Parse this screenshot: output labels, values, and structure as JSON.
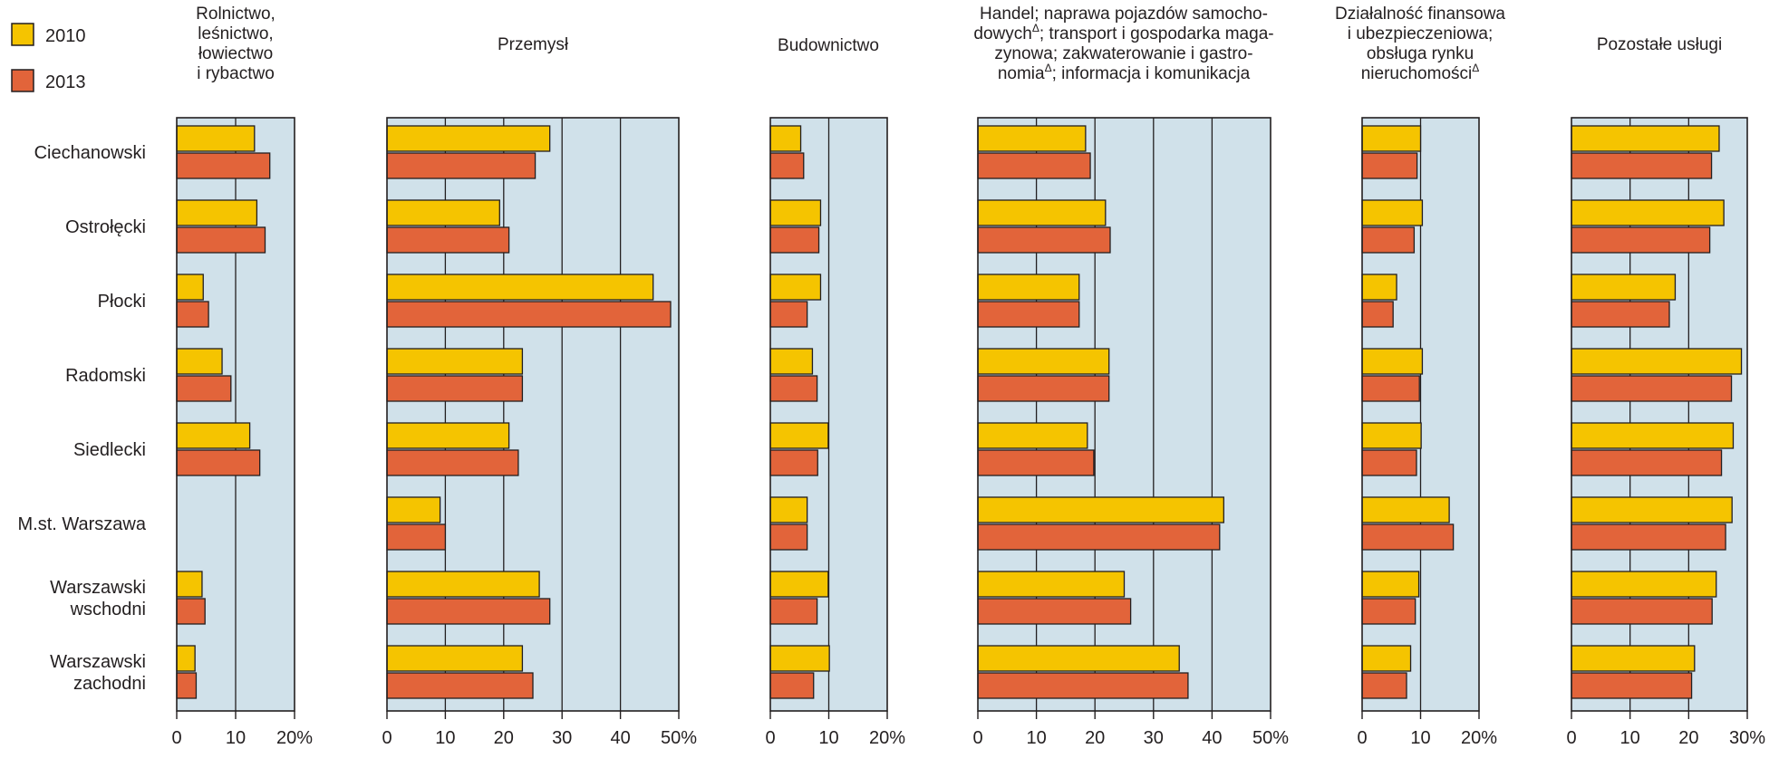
{
  "chart_data": {
    "type": "bar",
    "orientation": "horizontal",
    "layout": "small-multiples",
    "categories": [
      "Ciechanowski",
      "Ostrołęcki",
      "Płocki",
      "Radomski",
      "Siedlecki",
      "M.st. Warszawa",
      "Warszawski wschodni",
      "Warszawski zachodni"
    ],
    "category_label_lines": [
      [
        "Ciechanowski"
      ],
      [
        "Ostrołęcki"
      ],
      [
        "Płocki"
      ],
      [
        "Radomski"
      ],
      [
        "Siedlecki"
      ],
      [
        "M.st. Warszawa"
      ],
      [
        "Warszawski",
        "wschodni"
      ],
      [
        "Warszawski",
        "zachodni"
      ]
    ],
    "legend": {
      "position": "top-left",
      "entries": [
        {
          "label": "2010",
          "color": "#f5c400"
        },
        {
          "label": "2013",
          "color": "#e2643a"
        }
      ]
    },
    "colors": {
      "series_2010": "#f5c400",
      "series_2013": "#e2643a",
      "panel_bg": "#d0e1ea",
      "stroke": "#231f20"
    },
    "grid": true,
    "panels": [
      {
        "title_lines": [
          {
            "t": "Rolnictwo,"
          },
          {
            "t": "leśnictwo,"
          },
          {
            "t": "łowiectwo"
          },
          {
            "t": "i rybactwo"
          }
        ],
        "xlim": [
          0,
          20
        ],
        "ticks": [
          "0",
          "10",
          "20%"
        ],
        "series": [
          {
            "name": "2010",
            "values": [
              13.2,
              13.6,
              4.5,
              7.7,
              12.4,
              0,
              4.3,
              3.1
            ]
          },
          {
            "name": "2013",
            "values": [
              15.8,
              15.0,
              5.4,
              9.2,
              14.1,
              0,
              4.8,
              3.3
            ]
          }
        ]
      },
      {
        "title_lines": [
          {
            "t": "Przemysł"
          }
        ],
        "xlim": [
          0,
          50
        ],
        "ticks": [
          "0",
          "10",
          "20",
          "30",
          "40",
          "50%"
        ],
        "series": [
          {
            "name": "2010",
            "values": [
              27.9,
              19.3,
              45.6,
              23.2,
              20.9,
              9.1,
              26.1,
              23.2
            ]
          },
          {
            "name": "2013",
            "values": [
              25.4,
              20.9,
              48.6,
              23.2,
              22.5,
              10.0,
              27.9,
              25.0
            ]
          }
        ]
      },
      {
        "title_lines": [
          {
            "t": "Budownictwo"
          }
        ],
        "xlim": [
          0,
          20
        ],
        "ticks": [
          "0",
          "10",
          "20%"
        ],
        "series": [
          {
            "name": "2010",
            "values": [
              5.2,
              8.6,
              8.6,
              7.2,
              9.9,
              6.3,
              9.9,
              10.1
            ]
          },
          {
            "name": "2013",
            "values": [
              5.7,
              8.3,
              6.3,
              8.0,
              8.1,
              6.3,
              8.0,
              7.4
            ]
          }
        ]
      },
      {
        "title_lines": [
          {
            "t": "Handel; naprawa pojazdów samocho-"
          },
          {
            "t": "dowych",
            "sup": "Δ",
            "rest": "; transport i gospodarka maga-"
          },
          {
            "t": "zynowa; zakwaterowanie i gastro-"
          },
          {
            "t": "nomia",
            "sup": "Δ",
            "rest": "; informacja i komunikacja"
          }
        ],
        "xlim": [
          0,
          50
        ],
        "ticks": [
          "0",
          "10",
          "20",
          "30",
          "40",
          "50%"
        ],
        "series": [
          {
            "name": "2010",
            "values": [
              18.4,
              21.8,
              17.3,
              22.4,
              18.7,
              42.0,
              25.0,
              34.4
            ]
          },
          {
            "name": "2013",
            "values": [
              19.2,
              22.6,
              17.3,
              22.4,
              19.8,
              41.3,
              26.1,
              35.9
            ]
          }
        ]
      },
      {
        "title_lines": [
          {
            "t": "Działalność finansowa"
          },
          {
            "t": "i ubezpieczeniowa;"
          },
          {
            "t": "obsługa rynku"
          },
          {
            "t": "nieruchomości",
            "sup": "Δ"
          }
        ],
        "xlim": [
          0,
          20
        ],
        "ticks": [
          "0",
          "10",
          "20%"
        ],
        "series": [
          {
            "name": "2010",
            "values": [
              10.0,
              10.3,
              5.9,
              10.3,
              10.1,
              14.9,
              9.7,
              8.3
            ]
          },
          {
            "name": "2013",
            "values": [
              9.4,
              8.9,
              5.3,
              9.8,
              9.3,
              15.6,
              9.1,
              7.6
            ]
          }
        ]
      },
      {
        "title_lines": [
          {
            "t": "Pozostałe usługi"
          }
        ],
        "xlim": [
          0,
          30
        ],
        "ticks": [
          "0",
          "10",
          "20",
          "30%"
        ],
        "series": [
          {
            "name": "2010",
            "values": [
              25.2,
              26.0,
              17.7,
              29.0,
              27.6,
              27.4,
              24.7,
              21.0
            ]
          },
          {
            "name": "2013",
            "values": [
              23.9,
              23.6,
              16.7,
              27.3,
              25.6,
              26.3,
              24.0,
              20.5
            ]
          }
        ]
      }
    ]
  }
}
